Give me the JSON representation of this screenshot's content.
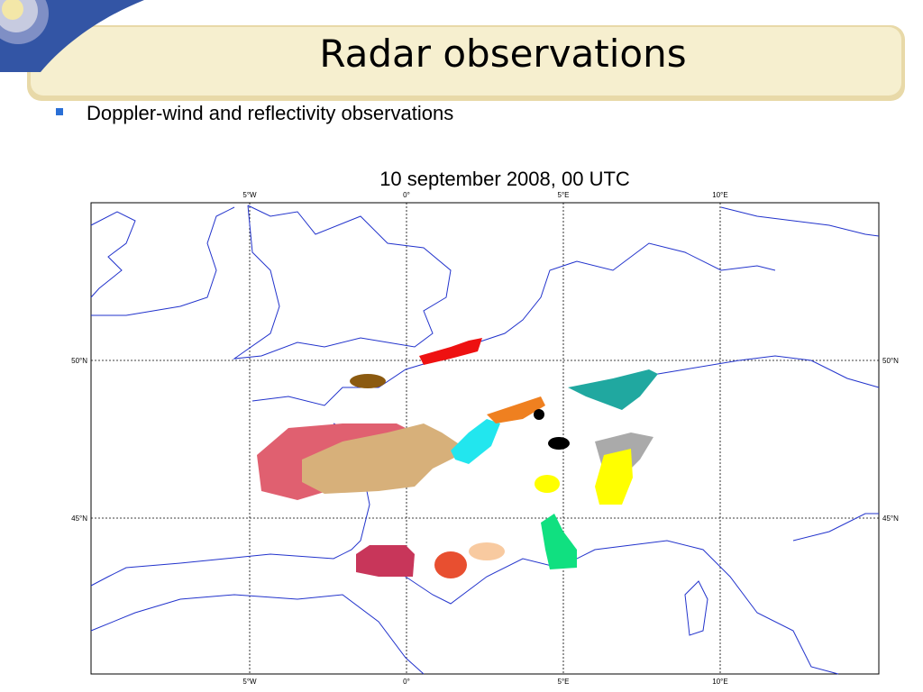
{
  "header": {
    "title": "Radar observations"
  },
  "bullets": [
    "Doppler-wind and reflectivity observations"
  ],
  "map": {
    "title": "10 september 2008, 00 UTC",
    "lon_labels": [
      "5°W",
      "0°",
      "5°E",
      "10°E"
    ],
    "lat_labels": [
      "50°N",
      "45°N"
    ]
  }
}
